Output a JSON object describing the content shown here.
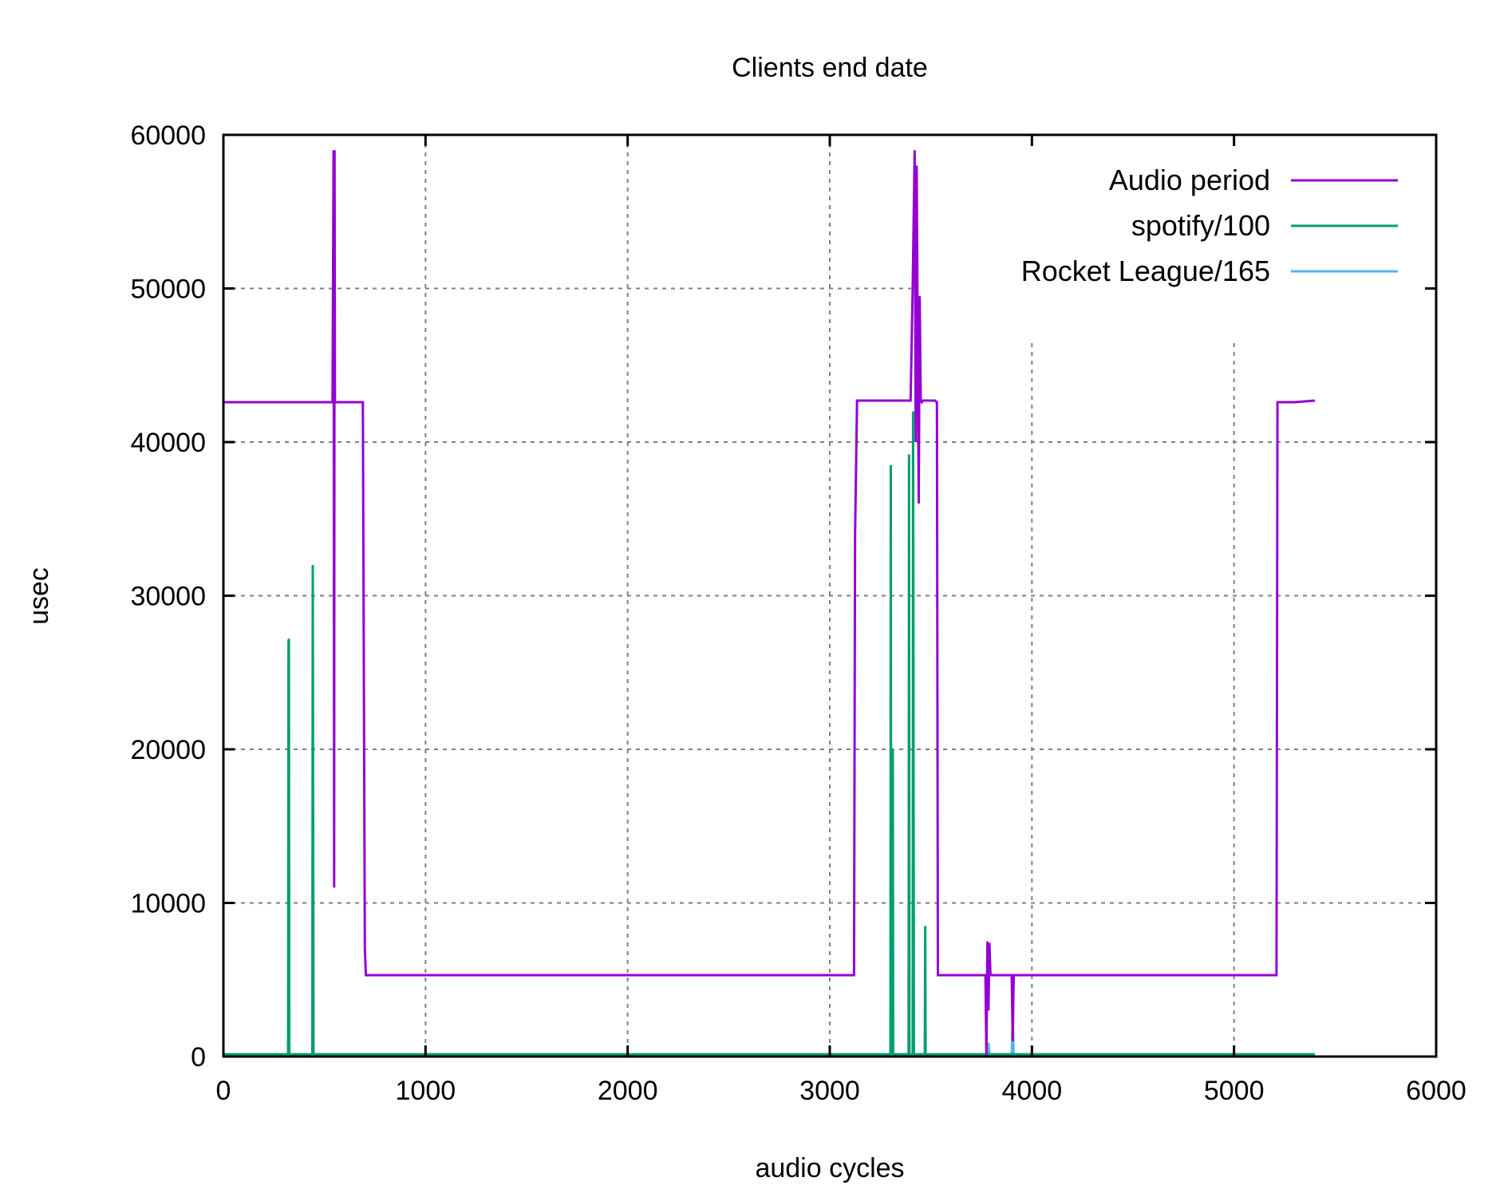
{
  "chart_data": {
    "type": "line",
    "title": "Clients end date",
    "xlabel": "audio cycles",
    "ylabel": "usec",
    "xlim": [
      0,
      6000
    ],
    "ylim": [
      0,
      60000
    ],
    "xticks": [
      0,
      1000,
      2000,
      3000,
      4000,
      5000,
      6000
    ],
    "yticks": [
      0,
      10000,
      20000,
      30000,
      40000,
      50000,
      60000
    ],
    "grid": true,
    "legend_position": "top-right",
    "series": [
      {
        "name": "Audio period",
        "color": "#9400d3",
        "x": [
          0,
          500,
          540,
          545,
          548,
          550,
          552,
          555,
          560,
          600,
          690,
          700,
          705,
          720,
          1000,
          2000,
          3000,
          3120,
          3125,
          3135,
          3140,
          3350,
          3400,
          3410,
          3420,
          3425,
          3430,
          3440,
          3445,
          3450,
          3455,
          3460,
          3470,
          3480,
          3520,
          3530,
          3535,
          3545,
          3560,
          3770,
          3775,
          3780,
          3785,
          3790,
          3795,
          3800,
          3810,
          3900,
          3905,
          3910,
          3920,
          4000,
          4400,
          5000,
          5210,
          5215,
          5220,
          5230,
          5300,
          5400
        ],
        "y": [
          42600,
          42600,
          42600,
          59000,
          11000,
          59000,
          42600,
          42600,
          42600,
          42600,
          42600,
          7000,
          5300,
          5300,
          5300,
          5300,
          5300,
          5300,
          34000,
          42700,
          42700,
          42700,
          42700,
          50000,
          59000,
          40000,
          58000,
          36000,
          49500,
          42700,
          42600,
          42700,
          42700,
          42700,
          42700,
          42600,
          5300,
          5300,
          5300,
          5300,
          0,
          7500,
          3000,
          7400,
          5300,
          5300,
          5300,
          5300,
          1000,
          5300,
          5300,
          5300,
          5300,
          5300,
          5300,
          42600,
          42600,
          42600,
          42600,
          42700
        ]
      },
      {
        "name": "spotify/100",
        "color": "#009e73",
        "x": [
          0,
          320,
          322,
          324,
          326,
          328,
          440,
          442,
          444,
          446,
          700,
          1000,
          2000,
          3000,
          3100,
          3300,
          3302,
          3304,
          3310,
          3312,
          3314,
          3390,
          3392,
          3394,
          3410,
          3412,
          3414,
          3416,
          3470,
          3472,
          3474,
          3476,
          3700,
          3800,
          4500,
          5200,
          5400
        ],
        "y": [
          150,
          150,
          27000,
          27200,
          150,
          150,
          150,
          32000,
          16000,
          150,
          150,
          150,
          150,
          150,
          150,
          150,
          38500,
          150,
          150,
          20000,
          150,
          150,
          39200,
          150,
          150,
          42000,
          26000,
          150,
          150,
          8500,
          150,
          150,
          150,
          150,
          150,
          150,
          150
        ]
      },
      {
        "name": "Rocket League/165",
        "color": "#56b4e9",
        "x": [
          0,
          1000,
          2000,
          3000,
          3500,
          3780,
          3785,
          3790,
          3900,
          3905,
          3910,
          3920,
          4200,
          5000,
          5400
        ],
        "y": [
          100,
          100,
          100,
          100,
          100,
          100,
          900,
          100,
          100,
          2500,
          100,
          100,
          100,
          100,
          100
        ]
      }
    ]
  }
}
